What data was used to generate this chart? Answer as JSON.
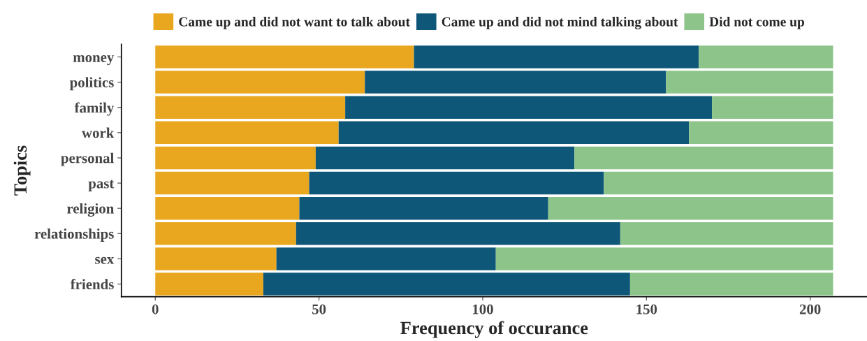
{
  "chart_data": {
    "type": "bar",
    "orientation": "horizontal",
    "stacked": true,
    "xlabel": "Frequency of occurance",
    "ylabel": "Topics",
    "categories": [
      "money",
      "politics",
      "family",
      "work",
      "personal",
      "past",
      "religion",
      "relationships",
      "sex",
      "friends"
    ],
    "series": [
      {
        "name": "Came up and did not want to talk about",
        "color": "#e8a71e",
        "values": [
          79,
          64,
          58,
          56,
          49,
          47,
          44,
          43,
          37,
          33
        ]
      },
      {
        "name": "Came up and did not mind talking about",
        "color": "#0e5779",
        "values": [
          87,
          92,
          112,
          107,
          79,
          90,
          76,
          99,
          67,
          112
        ]
      },
      {
        "name": "Did not come up",
        "color": "#8dc48a",
        "values": [
          41,
          51,
          37,
          44,
          79,
          70,
          87,
          65,
          103,
          62
        ]
      }
    ],
    "xlim": [
      -10.35,
      217.35
    ],
    "xticks": [
      0,
      50,
      100,
      150,
      200
    ],
    "grid": false,
    "legend": "top"
  }
}
